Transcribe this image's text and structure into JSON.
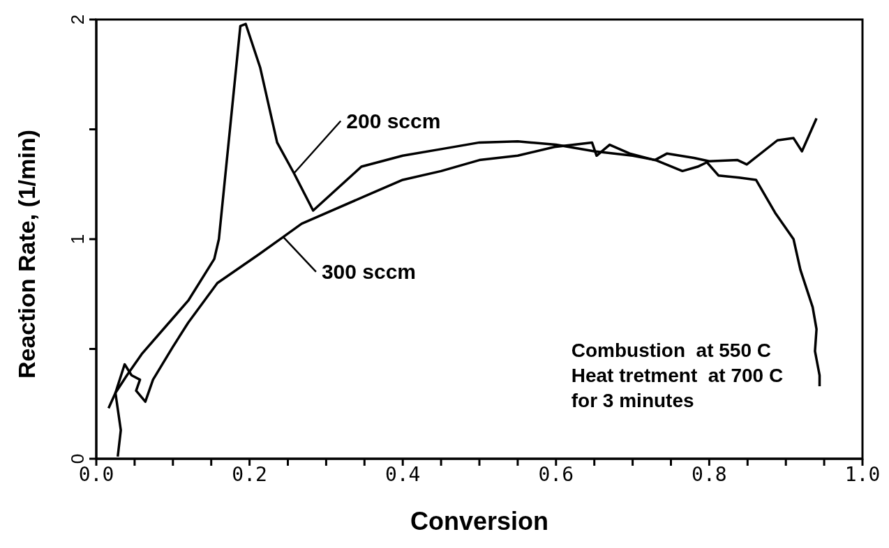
{
  "chart_data": {
    "type": "line",
    "xlabel": "Conversion",
    "ylabel": "Reaction  Rate,  (1/min)",
    "xlim": [
      0,
      1
    ],
    "ylim": [
      0,
      2
    ],
    "xticks": [
      {
        "value": 0,
        "label": "0.0"
      },
      {
        "value": 0.05,
        "label": null
      },
      {
        "value": 0.1,
        "label": null
      },
      {
        "value": 0.15,
        "label": null
      },
      {
        "value": 0.2,
        "label": "0.2"
      },
      {
        "value": 0.25,
        "label": null
      },
      {
        "value": 0.3,
        "label": null
      },
      {
        "value": 0.35,
        "label": null
      },
      {
        "value": 0.4,
        "label": "0.4"
      },
      {
        "value": 0.45,
        "label": null
      },
      {
        "value": 0.5,
        "label": null
      },
      {
        "value": 0.55,
        "label": null
      },
      {
        "value": 0.6,
        "label": "0.6"
      },
      {
        "value": 0.65,
        "label": null
      },
      {
        "value": 0.7,
        "label": null
      },
      {
        "value": 0.75,
        "label": null
      },
      {
        "value": 0.8,
        "label": "0.8"
      },
      {
        "value": 0.85,
        "label": null
      },
      {
        "value": 0.9,
        "label": null
      },
      {
        "value": 0.95,
        "label": null
      },
      {
        "value": 1,
        "label": "1.0"
      }
    ],
    "yticks": [
      0,
      {
        "value": 0.5,
        "label": null
      },
      1,
      {
        "value": 1.5,
        "label": null
      },
      2
    ],
    "series": [
      {
        "name": "200 sccm",
        "color": "#000000",
        "x": [
          0.016,
          0.025,
          0.04,
          0.06,
          0.09,
          0.12,
          0.154,
          0.16,
          0.188,
          0.195,
          0.214,
          0.236,
          0.258,
          0.283,
          0.346,
          0.4,
          0.45,
          0.5,
          0.55,
          0.6,
          0.65,
          0.7,
          0.73,
          0.765,
          0.785,
          0.797,
          0.812,
          0.839,
          0.861,
          0.886,
          0.91,
          0.919,
          0.935,
          0.94,
          0.938,
          0.944,
          0.944
        ],
        "values": [
          0.23,
          0.3,
          0.38,
          0.48,
          0.6,
          0.72,
          0.91,
          1.0,
          1.97,
          1.98,
          1.78,
          1.44,
          1.3,
          1.13,
          1.33,
          1.38,
          1.41,
          1.44,
          1.445,
          1.43,
          1.4,
          1.38,
          1.36,
          1.31,
          1.33,
          1.35,
          1.29,
          1.28,
          1.27,
          1.12,
          1.0,
          0.86,
          0.69,
          0.59,
          0.49,
          0.38,
          0.33
        ]
      },
      {
        "name": "300 sccm",
        "color": "#000000",
        "x": [
          0.028,
          0.032,
          0.025,
          0.037,
          0.046,
          0.057,
          0.052,
          0.064,
          0.074,
          0.1,
          0.12,
          0.158,
          0.212,
          0.244,
          0.268,
          0.36,
          0.4,
          0.45,
          0.5,
          0.55,
          0.598,
          0.647,
          0.653,
          0.67,
          0.696,
          0.729,
          0.745,
          0.78,
          0.8,
          0.837,
          0.849,
          0.889,
          0.91,
          0.921,
          0.94
        ],
        "values": [
          0.01,
          0.13,
          0.3,
          0.43,
          0.38,
          0.36,
          0.31,
          0.26,
          0.36,
          0.51,
          0.62,
          0.8,
          0.93,
          1.01,
          1.07,
          1.21,
          1.27,
          1.31,
          1.36,
          1.38,
          1.42,
          1.44,
          1.38,
          1.43,
          1.39,
          1.36,
          1.39,
          1.37,
          1.355,
          1.36,
          1.34,
          1.45,
          1.46,
          1.4,
          1.55
        ]
      }
    ],
    "annotations": [
      "Combustion  at 550 C",
      "Heat tretment  at 700 C",
      "for 3 minutes"
    ],
    "marker": "none",
    "line_style": "solid"
  }
}
